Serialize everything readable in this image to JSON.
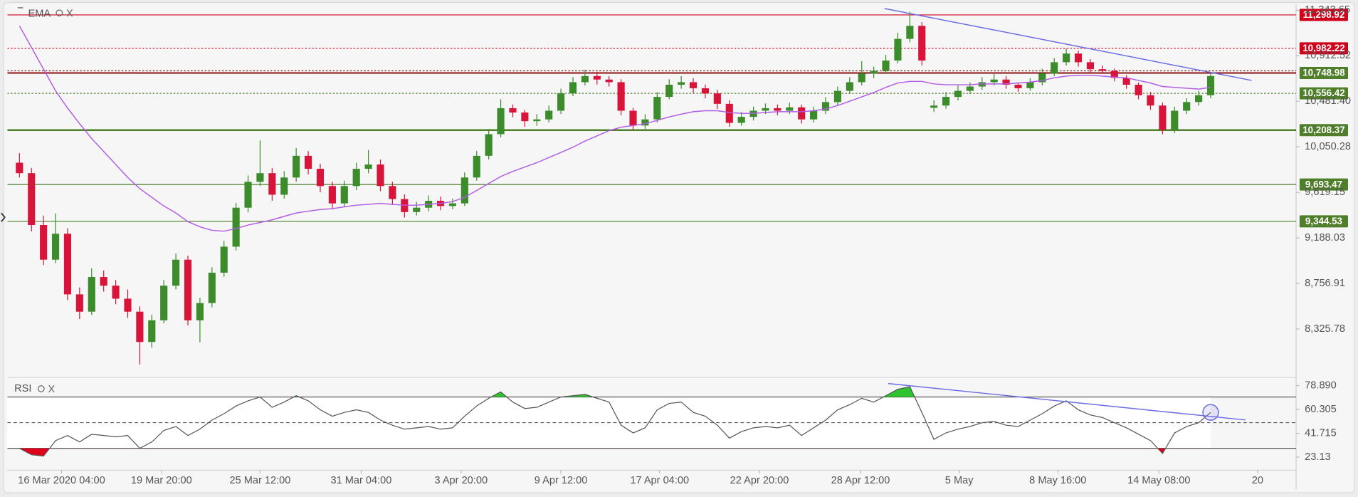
{
  "chart_data": [
    {
      "type": "candlestick",
      "up_color": "#3c8c2c",
      "down_color": "#d8143a",
      "xlim": [
        -0.5,
        106.1
      ],
      "ylim": [
        7875,
        11399
      ],
      "yticks": [
        {
          "value": 11343.65,
          "label": "11,343.65"
        },
        {
          "value": 10912.52,
          "label": "10,912.52"
        },
        {
          "value": 10481.4,
          "label": "10,481.40"
        },
        {
          "value": 10050.28,
          "label": "10,050.28"
        },
        {
          "value": 9619.15,
          "label": "9,619.15"
        },
        {
          "value": 9188.03,
          "label": "9,188.03"
        },
        {
          "value": 8756.91,
          "label": "8,756.91"
        },
        {
          "value": 8325.78,
          "label": "8,325.78"
        }
      ],
      "levels": [
        {
          "value": 11298.92,
          "label": "11,298.92",
          "color": "#d0021b",
          "style": "solid"
        },
        {
          "value": 10982.22,
          "label": "10,982.22",
          "color": "#d0021b",
          "style": "dotted"
        },
        {
          "value": 10748.98,
          "label": "10,748.98",
          "color": "#8a1010",
          "style": "double",
          "label_color": "#4f7f2a"
        },
        {
          "value": 10556.42,
          "label": "10,556.42",
          "color": "#4f7f2a",
          "style": "dotted"
        },
        {
          "value": 10208.37,
          "label": "10,208.37",
          "color": "#4f7f2a",
          "style": "thick"
        },
        {
          "value": 9693.47,
          "label": "9,693.47",
          "color": "#4f7f2a",
          "style": "solid"
        },
        {
          "value": 9344.53,
          "label": "9,344.53",
          "color": "#4f7f2a",
          "style": "solid"
        }
      ],
      "trendlines": [
        {
          "x": [
            71.9,
            102.4
          ],
          "y": [
            11359,
            10679
          ],
          "color": "#6b6be6"
        }
      ],
      "series": [
        {
          "name": "EMA",
          "color": "#b25ce6",
          "values": [
            11195,
            10990,
            10785,
            10580,
            10416,
            10269,
            10129,
            10006,
            9883,
            9760,
            9654,
            9572,
            9490,
            9424,
            9342,
            9293,
            9260,
            9252,
            9277,
            9310,
            9334,
            9359,
            9392,
            9424,
            9441,
            9457,
            9465,
            9482,
            9498,
            9506,
            9515,
            9506,
            9498,
            9498,
            9506,
            9515,
            9531,
            9572,
            9637,
            9703,
            9769,
            9818,
            9859,
            9900,
            9949,
            9998,
            10047,
            10105,
            10154,
            10203,
            10236,
            10252,
            10269,
            10301,
            10334,
            10359,
            10383,
            10392,
            10392,
            10375,
            10367,
            10367,
            10375,
            10383,
            10383,
            10383,
            10392,
            10408,
            10441,
            10482,
            10523,
            10564,
            10613,
            10654,
            10670,
            10670,
            10646,
            10638,
            10638,
            10638,
            10646,
            10646,
            10646,
            10654,
            10662,
            10679,
            10703,
            10720,
            10728,
            10728,
            10720,
            10711,
            10703,
            10679,
            10654,
            10621,
            10613,
            10605,
            10597,
            10613
          ]
        }
      ],
      "ohlc": [
        [
          9900,
          9990,
          9760,
          9801
        ],
        [
          9801,
          9850,
          9250,
          9310
        ],
        [
          9310,
          9400,
          8930,
          8982
        ],
        [
          8982,
          9420,
          8950,
          9228
        ],
        [
          9228,
          9280,
          8600,
          8654
        ],
        [
          8654,
          8720,
          8420,
          8490
        ],
        [
          8490,
          8900,
          8460,
          8818
        ],
        [
          8818,
          8880,
          8680,
          8736
        ],
        [
          8736,
          8790,
          8560,
          8613
        ],
        [
          8613,
          8700,
          8430,
          8490
        ],
        [
          8490,
          8540,
          7990,
          8203
        ],
        [
          8203,
          8460,
          8150,
          8408
        ],
        [
          8408,
          8790,
          8380,
          8736
        ],
        [
          8736,
          9040,
          8700,
          8982
        ],
        [
          8982,
          9020,
          8360,
          8408
        ],
        [
          8408,
          8620,
          8200,
          8572
        ],
        [
          8572,
          8910,
          8530,
          8859
        ],
        [
          8859,
          9160,
          8820,
          9105
        ],
        [
          9105,
          9520,
          9070,
          9474
        ],
        [
          9474,
          9780,
          9430,
          9719
        ],
        [
          9719,
          10110,
          9680,
          9801
        ],
        [
          9801,
          9850,
          9540,
          9597
        ],
        [
          9597,
          9820,
          9560,
          9760
        ],
        [
          9760,
          10040,
          9720,
          9965
        ],
        [
          9965,
          10010,
          9790,
          9842
        ],
        [
          9842,
          9890,
          9620,
          9679
        ],
        [
          9679,
          9720,
          9460,
          9515
        ],
        [
          9515,
          9730,
          9480,
          9679
        ],
        [
          9679,
          9900,
          9640,
          9842
        ],
        [
          9842,
          10020,
          9800,
          9883
        ],
        [
          9883,
          9930,
          9630,
          9679
        ],
        [
          9679,
          9720,
          9500,
          9556
        ],
        [
          9556,
          9600,
          9380,
          9433
        ],
        [
          9433,
          9530,
          9400,
          9474
        ],
        [
          9474,
          9590,
          9440,
          9539
        ],
        [
          9539,
          9580,
          9450,
          9490
        ],
        [
          9490,
          9560,
          9460,
          9515
        ],
        [
          9515,
          9810,
          9490,
          9760
        ],
        [
          9760,
          10010,
          9730,
          9965
        ],
        [
          9965,
          10220,
          9930,
          10170
        ],
        [
          10170,
          10500,
          10140,
          10416
        ],
        [
          10416,
          10450,
          10330,
          10375
        ],
        [
          10375,
          10400,
          10240,
          10293
        ],
        [
          10293,
          10360,
          10250,
          10310
        ],
        [
          10310,
          10440,
          10280,
          10392
        ],
        [
          10392,
          10600,
          10360,
          10556
        ],
        [
          10556,
          10710,
          10530,
          10662
        ],
        [
          10662,
          10780,
          10630,
          10720
        ],
        [
          10720,
          10760,
          10640,
          10687
        ],
        [
          10687,
          10720,
          10620,
          10662
        ],
        [
          10662,
          10690,
          10350,
          10392
        ],
        [
          10392,
          10420,
          10210,
          10252
        ],
        [
          10252,
          10360,
          10220,
          10310
        ],
        [
          10310,
          10570,
          10280,
          10523
        ],
        [
          10523,
          10690,
          10500,
          10638
        ],
        [
          10638,
          10720,
          10600,
          10662
        ],
        [
          10662,
          10700,
          10560,
          10605
        ],
        [
          10605,
          10640,
          10510,
          10556
        ],
        [
          10556,
          10590,
          10410,
          10457
        ],
        [
          10457,
          10490,
          10240,
          10277
        ],
        [
          10277,
          10380,
          10250,
          10334
        ],
        [
          10334,
          10430,
          10300,
          10392
        ],
        [
          10392,
          10460,
          10360,
          10416
        ],
        [
          10416,
          10450,
          10350,
          10392
        ],
        [
          10392,
          10470,
          10360,
          10424
        ],
        [
          10424,
          10450,
          10270,
          10310
        ],
        [
          10310,
          10430,
          10280,
          10392
        ],
        [
          10392,
          10520,
          10360,
          10474
        ],
        [
          10474,
          10620,
          10440,
          10580
        ],
        [
          10580,
          10710,
          10550,
          10662
        ],
        [
          10662,
          10860,
          10630,
          10744
        ],
        [
          10744,
          10810,
          10700,
          10769
        ],
        [
          10769,
          10920,
          10740,
          10867
        ],
        [
          10867,
          11130,
          10840,
          11072
        ],
        [
          11072,
          11330,
          11040,
          11195
        ],
        [
          11195,
          11230,
          10820,
          10867
        ],
        [
          10420,
          10490,
          10380,
          10441
        ],
        [
          10441,
          10570,
          10410,
          10523
        ],
        [
          10523,
          10630,
          10490,
          10580
        ],
        [
          10580,
          10660,
          10550,
          10621
        ],
        [
          10621,
          10710,
          10590,
          10662
        ],
        [
          10662,
          10740,
          10630,
          10687
        ],
        [
          10687,
          10720,
          10600,
          10638
        ],
        [
          10638,
          10660,
          10570,
          10605
        ],
        [
          10605,
          10700,
          10580,
          10662
        ],
        [
          10662,
          10790,
          10630,
          10744
        ],
        [
          10744,
          10890,
          10720,
          10851
        ],
        [
          10851,
          10980,
          10820,
          10933
        ],
        [
          10933,
          10960,
          10810,
          10851
        ],
        [
          10851,
          10880,
          10750,
          10785
        ],
        [
          10785,
          10820,
          10740,
          10769
        ],
        [
          10769,
          10790,
          10670,
          10703
        ],
        [
          10703,
          10730,
          10600,
          10638
        ],
        [
          10638,
          10660,
          10500,
          10539
        ],
        [
          10539,
          10570,
          10400,
          10441
        ],
        [
          10441,
          10470,
          10170,
          10211
        ],
        [
          10211,
          10430,
          10180,
          10392
        ],
        [
          10392,
          10510,
          10360,
          10474
        ],
        [
          10474,
          10580,
          10440,
          10539
        ],
        [
          10539,
          10760,
          10510,
          10720
        ]
      ]
    },
    {
      "type": "line",
      "xlim": [
        -0.5,
        106.1
      ],
      "ylim": [
        13.69,
        84.5
      ],
      "yticks": [
        {
          "value": 78.89,
          "label": "78.890"
        },
        {
          "value": 60.305,
          "label": "60.305"
        },
        {
          "value": 41.715,
          "label": "41.715"
        },
        23.13
      ],
      "xticks": [
        {
          "value": 3.5,
          "label": "16 Mar 2020 04:00"
        },
        {
          "value": 11.8,
          "label": "19 Mar 20:00"
        },
        {
          "value": 20,
          "label": "25 Mar 12:00"
        },
        {
          "value": 28.4,
          "label": "31 Mar 04:00"
        },
        {
          "value": 36.7,
          "label": "3 Apr 20:00"
        },
        {
          "value": 45,
          "label": "9 Apr 12:00"
        },
        {
          "value": 53.2,
          "label": "17 Apr 04:00"
        },
        {
          "value": 61.5,
          "label": "22 Apr 20:00"
        },
        {
          "value": 69.9,
          "label": "28 Apr 12:00"
        },
        {
          "value": 78.1,
          "label": "5 May"
        },
        {
          "value": 86.3,
          "label": "8 May 16:00"
        },
        {
          "value": 94.7,
          "label": "14 May 08:00"
        },
        {
          "value": 102.9,
          "label": "20"
        }
      ],
      "levels": [
        {
          "value": 70,
          "style": "solid"
        },
        {
          "value": 50,
          "style": "dashed"
        },
        {
          "value": 30,
          "style": "solid"
        }
      ],
      "overbought_color": "#2fc42f",
      "oversold_color": "#e0001b",
      "trendlines": [
        {
          "x": [
            72.2,
            101.9
          ],
          "y": [
            80.5,
            52.1
          ],
          "color": "#6b6be6"
        }
      ],
      "markers": [
        {
          "x": 99,
          "y": 58,
          "color": "#6b6be6"
        }
      ],
      "series": [
        {
          "name": "RSI",
          "color": "#555555",
          "values": [
            30,
            25,
            24,
            36,
            40,
            35,
            41,
            40,
            39,
            40,
            30,
            35,
            44,
            47,
            40,
            45,
            52,
            57,
            63,
            67,
            70,
            62,
            66,
            71,
            67,
            60,
            55,
            58,
            60,
            58,
            52,
            48,
            45,
            46,
            47,
            45,
            46,
            55,
            63,
            69,
            74,
            66,
            61,
            62,
            66,
            70,
            71,
            72,
            69,
            66,
            48,
            42,
            46,
            60,
            65,
            66,
            58,
            55,
            48,
            38,
            43,
            46,
            47,
            46,
            48,
            40,
            46,
            52,
            60,
            64,
            69,
            66,
            71,
            76,
            78,
            58,
            37,
            42,
            45,
            47,
            50,
            51,
            48,
            47,
            52,
            57,
            63,
            67,
            60,
            56,
            54,
            50,
            46,
            41,
            36,
            26,
            42,
            47,
            50,
            58
          ]
        }
      ]
    }
  ]
}
